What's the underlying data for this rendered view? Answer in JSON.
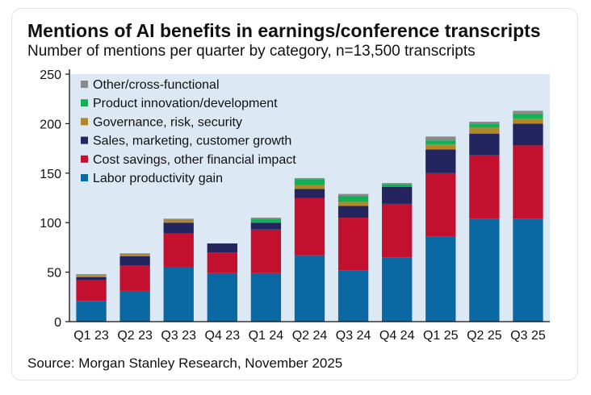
{
  "chart_data": {
    "type": "bar",
    "stacked": true,
    "title": "Mentions of AI benefits in earnings/conference transcripts",
    "subtitle": "Number of mentions per quarter by category, n=13,500 transcripts",
    "source": "Source: Morgan Stanley Research, November 2025",
    "xlabel": "",
    "ylabel": "",
    "ylim": [
      0,
      250
    ],
    "yticks": [
      0,
      50,
      100,
      150,
      200,
      250
    ],
    "grid": false,
    "legend_position": "top-left",
    "categories": [
      "Q1 23",
      "Q2 23",
      "Q3 23",
      "Q4 23",
      "Q1 24",
      "Q2 24",
      "Q3 24",
      "Q4 24",
      "Q1 25",
      "Q2 25",
      "Q3 25"
    ],
    "series": [
      {
        "name": "Labor productivity gain",
        "color": "#0a69a3",
        "values": [
          21,
          31,
          55,
          49,
          49,
          67,
          52,
          65,
          86,
          104,
          104
        ]
      },
      {
        "name": "Cost savings, other financial impact",
        "color": "#c4102f",
        "values": [
          21,
          26,
          34,
          21,
          44,
          58,
          53,
          54,
          64,
          64,
          74
        ]
      },
      {
        "name": "Sales, marketing, customer growth",
        "color": "#24245e",
        "values": [
          3,
          9,
          11,
          9,
          7,
          9,
          12,
          17,
          24,
          22,
          22
        ]
      },
      {
        "name": "Governance, risk, security",
        "color": "#b0882a",
        "values": [
          2,
          2,
          3,
          0,
          0,
          4,
          4,
          0,
          5,
          6,
          5
        ]
      },
      {
        "name": "Product innovation/development",
        "color": "#12b055",
        "values": [
          0,
          0,
          0,
          0,
          4,
          6,
          6,
          3,
          4,
          4,
          5
        ]
      },
      {
        "name": "Other/cross-functional",
        "color": "#8a8a8a",
        "values": [
          1,
          1,
          1,
          0,
          1,
          1,
          2,
          1,
          4,
          2,
          3
        ]
      }
    ],
    "legend_order": [
      "Other/cross-functional",
      "Product innovation/development",
      "Governance, risk, security",
      "Sales, marketing, customer growth",
      "Cost savings, other financial impact",
      "Labor productivity gain"
    ],
    "plot_background": "#dce9f4"
  }
}
